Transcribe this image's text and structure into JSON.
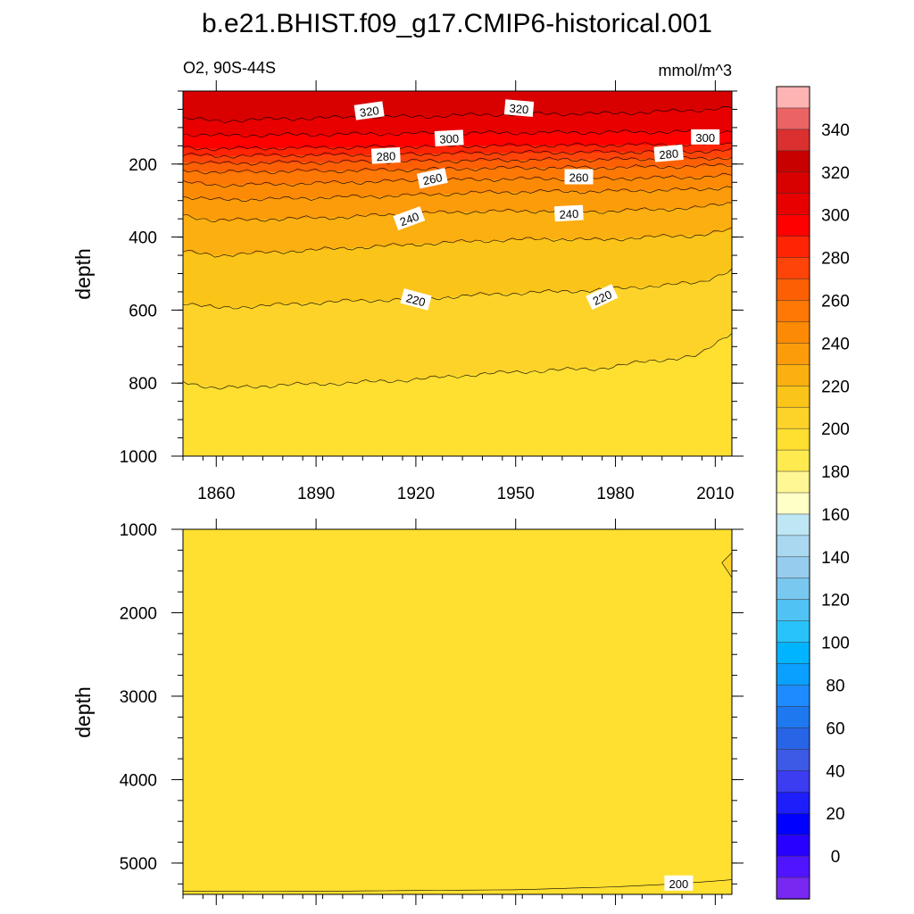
{
  "title": "b.e21.BHIST.f09_g17.CMIP6-historical.001",
  "colors": {
    "c200": "#ffdf30",
    "c210": "#fdd32a",
    "c220": "#fbc418",
    "c230": "#fbaf10",
    "c240": "#fc9c0a",
    "c250": "#fc8a05",
    "c260": "#fd7805",
    "c270": "#fd6004",
    "c280": "#fe4408",
    "c290": "#ff2404",
    "c300": "#ff0000",
    "c310": "#e80000",
    "c320": "#d90000",
    "c330": "#c80000"
  },
  "chart_data": [
    {
      "type": "contour",
      "name": "upper",
      "subtitle_left": "O2, 90S-44S",
      "subtitle_right": "mmol/m^3",
      "ylabel": "depth",
      "xlim": [
        1850,
        2015
      ],
      "ylim": [
        0,
        1000
      ],
      "y_inverted": true,
      "xticks": [
        1860,
        1890,
        1920,
        1950,
        1980,
        2010
      ],
      "xtick_labels": [
        "1860",
        "1890",
        "1920",
        "1950",
        "1980",
        "2010"
      ],
      "yticks": [
        200,
        400,
        600,
        800,
        1000
      ],
      "ytick_labels": [
        "200",
        "400",
        "600",
        "800",
        "1000"
      ],
      "fill_levels": [
        200,
        210,
        220,
        230,
        240,
        250,
        260,
        270,
        280,
        290,
        300,
        310,
        320,
        330
      ],
      "isolines": [
        {
          "level": 210,
          "years": [
            1850,
            1860,
            1880,
            1900,
            1920,
            1940,
            1960,
            1975,
            1990,
            2005,
            2015
          ],
          "depths": [
            795,
            815,
            805,
            800,
            790,
            775,
            765,
            760,
            740,
            725,
            660
          ]
        },
        {
          "level": 220,
          "years": [
            1850,
            1860,
            1880,
            1900,
            1920,
            1940,
            1960,
            1975,
            1990,
            2005,
            2015
          ],
          "depths": [
            580,
            595,
            585,
            575,
            570,
            558,
            550,
            545,
            535,
            525,
            490
          ]
        },
        {
          "level": 230,
          "years": [
            1850,
            1860,
            1880,
            1900,
            1920,
            1940,
            1960,
            1975,
            1990,
            2005,
            2015
          ],
          "depths": [
            440,
            450,
            440,
            430,
            420,
            410,
            405,
            408,
            400,
            395,
            380
          ]
        },
        {
          "level": 240,
          "years": [
            1850,
            1860,
            1880,
            1900,
            1920,
            1940,
            1960,
            1975,
            1990,
            2005,
            2015
          ],
          "depths": [
            340,
            355,
            350,
            345,
            335,
            330,
            328,
            330,
            325,
            320,
            305
          ]
        },
        {
          "level": 250,
          "years": [
            1850,
            1860,
            1880,
            1900,
            1920,
            1940,
            1960,
            1975,
            1990,
            2005,
            2015
          ],
          "depths": [
            290,
            298,
            295,
            290,
            285,
            278,
            275,
            275,
            272,
            270,
            262
          ]
        },
        {
          "level": 260,
          "years": [
            1850,
            1860,
            1880,
            1900,
            1920,
            1940,
            1960,
            1975,
            1990,
            2005,
            2015
          ],
          "depths": [
            250,
            258,
            255,
            250,
            245,
            242,
            240,
            240,
            238,
            236,
            230
          ]
        },
        {
          "level": 270,
          "years": [
            1850,
            1860,
            1880,
            1900,
            1920,
            1940,
            1960,
            1975,
            1990,
            2005,
            2015
          ],
          "depths": [
            218,
            222,
            220,
            218,
            215,
            212,
            210,
            210,
            208,
            206,
            202
          ]
        },
        {
          "level": 280,
          "years": [
            1850,
            1860,
            1880,
            1900,
            1920,
            1940,
            1960,
            1975,
            1990,
            2005,
            2015
          ],
          "depths": [
            195,
            198,
            196,
            194,
            192,
            190,
            188,
            188,
            186,
            185,
            182
          ]
        },
        {
          "level": 290,
          "years": [
            1850,
            1860,
            1880,
            1900,
            1920,
            1940,
            1960,
            1975,
            1990,
            2005,
            2015
          ],
          "depths": [
            175,
            178,
            176,
            174,
            172,
            170,
            168,
            168,
            166,
            165,
            163
          ]
        },
        {
          "level": 300,
          "years": [
            1850,
            1860,
            1880,
            1900,
            1920,
            1940,
            1960,
            1975,
            1990,
            2005,
            2015
          ],
          "depths": [
            155,
            158,
            156,
            154,
            152,
            150,
            149,
            148,
            147,
            146,
            144
          ]
        },
        {
          "level": 310,
          "years": [
            1850,
            1860,
            1880,
            1900,
            1920,
            1940,
            1960,
            1975,
            1990,
            2005,
            2015
          ],
          "depths": [
            118,
            122,
            120,
            118,
            116,
            115,
            114,
            113,
            112,
            111,
            110
          ]
        },
        {
          "level": 320,
          "years": [
            1850,
            1860,
            1880,
            1900,
            1920,
            1940,
            1960,
            1975,
            1990,
            2005,
            2015
          ],
          "depths": [
            75,
            82,
            76,
            72,
            70,
            65,
            62,
            62,
            58,
            52,
            45
          ]
        }
      ],
      "contour_labels": [
        {
          "text": "320",
          "year": 1906,
          "depth": 55,
          "angle": -8
        },
        {
          "text": "320",
          "year": 1951,
          "depth": 48,
          "angle": 5
        },
        {
          "text": "300",
          "year": 1930,
          "depth": 130,
          "angle": -3
        },
        {
          "text": "300",
          "year": 2007,
          "depth": 127,
          "angle": 0
        },
        {
          "text": "280",
          "year": 1911,
          "depth": 178,
          "angle": -3
        },
        {
          "text": "280",
          "year": 1996,
          "depth": 172,
          "angle": -5
        },
        {
          "text": "260",
          "year": 1925,
          "depth": 240,
          "angle": -12
        },
        {
          "text": "260",
          "year": 1969,
          "depth": 236,
          "angle": 0
        },
        {
          "text": "240",
          "year": 1918,
          "depth": 350,
          "angle": -20
        },
        {
          "text": "240",
          "year": 1966,
          "depth": 336,
          "angle": -3
        },
        {
          "text": "220",
          "year": 1920,
          "depth": 572,
          "angle": 15
        },
        {
          "text": "220",
          "year": 1976,
          "depth": 565,
          "angle": -25
        }
      ]
    },
    {
      "type": "contour",
      "name": "lower",
      "ylabel": "depth",
      "xlim": [
        1850,
        2015
      ],
      "ylim": [
        1000,
        5375
      ],
      "y_inverted": true,
      "xticks": [
        1860,
        1890,
        1920,
        1950,
        1980,
        2010
      ],
      "yticks": [
        1000,
        2000,
        3000,
        4000,
        5000
      ],
      "ytick_labels": [
        "1000",
        "2000",
        "3000",
        "4000",
        "5000"
      ],
      "fill_levels": [
        200,
        210
      ],
      "isolines": [
        {
          "level": 200,
          "years": [
            1850,
            1900,
            1950,
            1980,
            2000,
            2015
          ],
          "depths": [
            5340,
            5335,
            5320,
            5285,
            5245,
            5200
          ]
        },
        {
          "level": 200,
          "years": [
            2015,
            2012,
            2015
          ],
          "depths": [
            1280,
            1400,
            1580
          ]
        }
      ],
      "contour_labels": [
        {
          "text": "200",
          "year": 1999,
          "depth": 5245,
          "angle": 0
        }
      ]
    }
  ],
  "colorbar": {
    "labels": [
      "340",
      "320",
      "300",
      "280",
      "260",
      "240",
      "220",
      "200",
      "180",
      "160",
      "140",
      "120",
      "100",
      "80",
      "60",
      "40",
      "20",
      "0"
    ],
    "colors": [
      "#ffb4b4",
      "#ea6464",
      "#da3030",
      "#c80000",
      "#d90000",
      "#e80000",
      "#ff0000",
      "#ff2404",
      "#fe4408",
      "#fd6004",
      "#fd7805",
      "#fc8a05",
      "#fc9c0a",
      "#fbaf10",
      "#fbc418",
      "#fdd32a",
      "#ffdf30",
      "#ffea50",
      "#fff694",
      "#ffffc8",
      "#bfe6f5",
      "#aad8f0",
      "#96cdee",
      "#78c8f0",
      "#50c3f4",
      "#28c3fa",
      "#00b4ff",
      "#0aa0ff",
      "#1e8cff",
      "#1e78ef",
      "#2864e6",
      "#3c5ae6",
      "#3c3cf0",
      "#1e1efa",
      "#0000ff",
      "#2800ff",
      "#5014ff",
      "#7828f0"
    ]
  }
}
